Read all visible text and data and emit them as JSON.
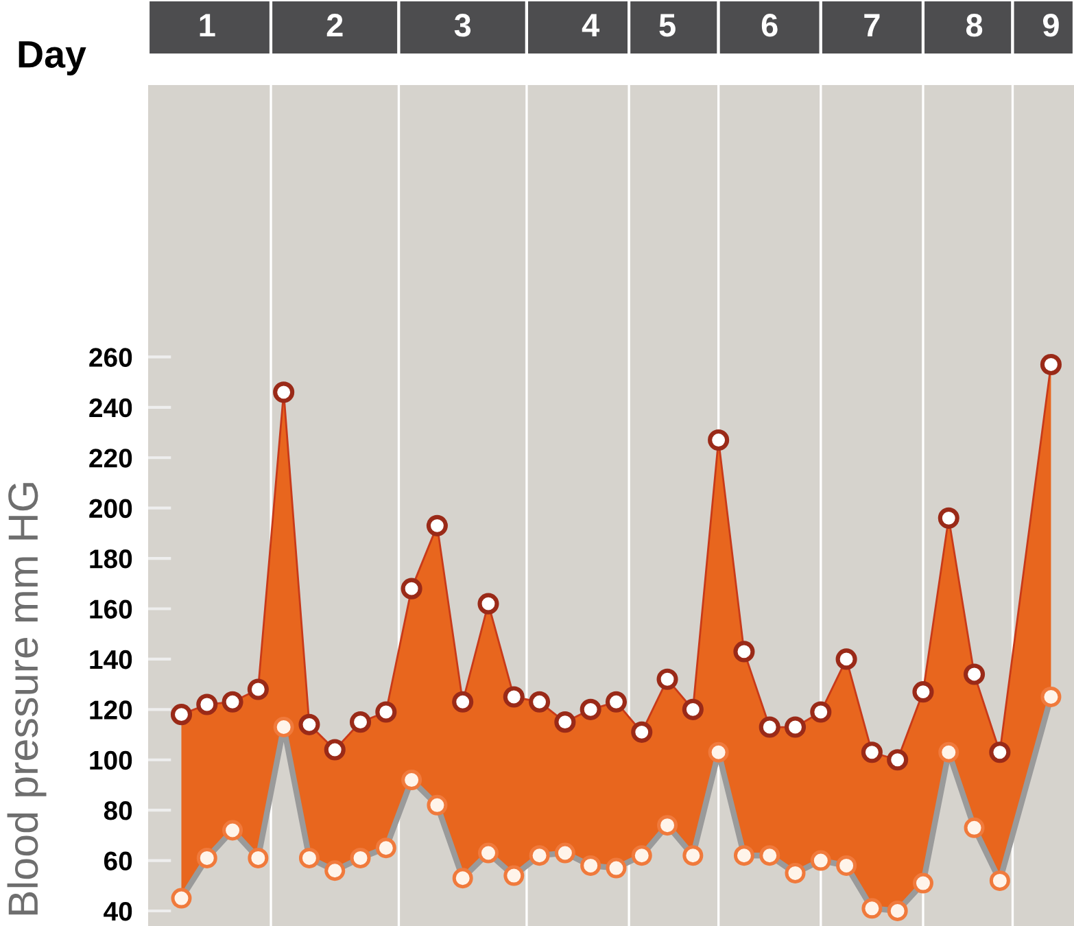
{
  "chart_data": {
    "type": "line",
    "xlabel": "Day",
    "ylabel": "Blood pressure mm HG",
    "categories": [
      null,
      "1",
      null,
      null,
      null,
      null,
      "2",
      null,
      null,
      null,
      null,
      "3",
      null,
      null,
      null,
      null,
      "4",
      null,
      null,
      "5",
      null,
      null,
      null,
      "6",
      null,
      null,
      null,
      "7",
      null,
      null,
      null,
      "8",
      null,
      null,
      "9"
    ],
    "series": [
      {
        "type": "area",
        "color": "#e8661e",
        "values": [
          118,
          122,
          123,
          128,
          246,
          114,
          104,
          115,
          119,
          168,
          193,
          123,
          162,
          125,
          123,
          115,
          120,
          123,
          111,
          132,
          120,
          227,
          143,
          113,
          113,
          119,
          140,
          103,
          100,
          127,
          196,
          134,
          103,
          null,
          257
        ]
      },
      {
        "color": "#9a9a9a",
        "values": [
          45,
          61,
          72,
          61,
          113,
          61,
          56,
          61,
          65,
          92,
          82,
          53,
          63,
          54,
          62,
          63,
          58,
          57,
          62,
          74,
          62,
          103,
          62,
          62,
          55,
          60,
          58,
          41,
          40,
          51,
          103,
          73,
          52,
          null,
          125
        ]
      }
    ],
    "ylim": [
      34,
      368
    ],
    "yticks": [
      40,
      60,
      80,
      100,
      120,
      140,
      160,
      180,
      200,
      220,
      240,
      260
    ],
    "marker": "circle",
    "grid": "x"
  }
}
